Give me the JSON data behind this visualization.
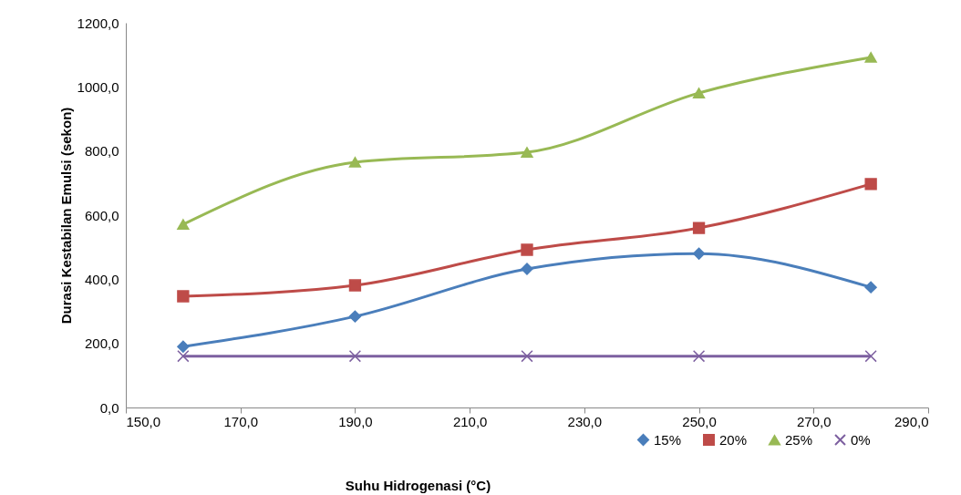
{
  "chart_data": {
    "type": "line",
    "xlabel": "Suhu Hidrogenasi (°C)",
    "ylabel": "Durasi Kestabilan Emulsi (sekon)",
    "x": [
      160,
      190,
      220,
      250,
      280
    ],
    "series": [
      {
        "name": "15%",
        "color": "#4a7ebb",
        "marker": "diamond",
        "values": [
          190,
          284,
          432,
          480,
          375
        ]
      },
      {
        "name": "20%",
        "color": "#be4b48",
        "marker": "square",
        "values": [
          347,
          381,
          492,
          560,
          697
        ]
      },
      {
        "name": "25%",
        "color": "#98b954",
        "marker": "triangle",
        "values": [
          571,
          765,
          796,
          981,
          1092
        ]
      },
      {
        "name": "0%",
        "color": "#7d60a0",
        "marker": "cross",
        "values": [
          160,
          160,
          160,
          160,
          160
        ]
      }
    ],
    "xlim": [
      150,
      290
    ],
    "xticks": [
      {
        "value": 150,
        "label": "150,0"
      },
      {
        "value": 170,
        "label": "170,0"
      },
      {
        "value": 190,
        "label": "190,0"
      },
      {
        "value": 210,
        "label": "210,0"
      },
      {
        "value": 230,
        "label": "230,0"
      },
      {
        "value": 250,
        "label": "250,0"
      },
      {
        "value": 270,
        "label": "270,0"
      },
      {
        "value": 290,
        "label": "290,0"
      }
    ],
    "ylim": [
      0,
      1200
    ],
    "yticks": [
      {
        "value": 0,
        "label": "0,0"
      },
      {
        "value": 200,
        "label": "200,0"
      },
      {
        "value": 400,
        "label": "400,0"
      },
      {
        "value": 600,
        "label": "600,0"
      },
      {
        "value": 800,
        "label": "800,0"
      },
      {
        "value": 1000,
        "label": "1000,0"
      },
      {
        "value": 1200,
        "label": "1200,0"
      }
    ],
    "grid": false,
    "legend": "bottom right",
    "line_style": "solid"
  }
}
